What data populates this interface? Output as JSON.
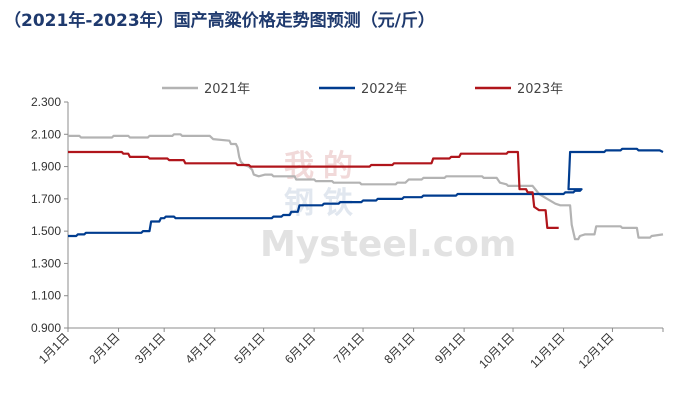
{
  "title": "（2021年-2023年）国产高粱价格走势图预测（元/斤）",
  "watermark": {
    "brand": "Mysteel.com",
    "chars": [
      "我",
      "的",
      "钢",
      "铁"
    ]
  },
  "colors": {
    "s2021": "#b3b3b3",
    "s2022": "#003c8f",
    "s2023": "#b0151b",
    "axis": "#8c8c8c",
    "title": "#1f3a6e"
  },
  "chart_data": {
    "type": "line",
    "ylim": [
      0.9,
      2.3
    ],
    "yticks": [
      "0.900",
      "1.100",
      "1.300",
      "1.500",
      "1.700",
      "1.900",
      "2.100",
      "2.300"
    ],
    "xlim": [
      1,
      366
    ],
    "xtick_days": [
      1,
      32,
      60,
      91,
      121,
      152,
      182,
      213,
      244,
      274,
      305,
      335
    ],
    "xticks": [
      "1月1日",
      "2月1日",
      "3月1日",
      "4月1日",
      "5月1日",
      "6月1日",
      "7月1日",
      "8月1日",
      "9月1日",
      "10月1日",
      "11月1日",
      "12月1日"
    ],
    "x_unit": "day of year",
    "legend": [
      "2021年",
      "2022年",
      "2023年"
    ],
    "legend_position": "top",
    "series": [
      {
        "name": "2021年",
        "color": "#b3b3b3",
        "points": [
          [
            1,
            2.09
          ],
          [
            8,
            2.09
          ],
          [
            9,
            2.08
          ],
          [
            28,
            2.08
          ],
          [
            29,
            2.09
          ],
          [
            38,
            2.09
          ],
          [
            39,
            2.08
          ],
          [
            50,
            2.08
          ],
          [
            51,
            2.09
          ],
          [
            65,
            2.09
          ],
          [
            66,
            2.1
          ],
          [
            70,
            2.1
          ],
          [
            71,
            2.09
          ],
          [
            88,
            2.09
          ],
          [
            90,
            2.07
          ],
          [
            100,
            2.06
          ],
          [
            101,
            2.04
          ],
          [
            104,
            2.04
          ],
          [
            105,
            2.02
          ],
          [
            106,
            1.96
          ],
          [
            107,
            1.93
          ],
          [
            109,
            1.91
          ],
          [
            112,
            1.9
          ],
          [
            114,
            1.88
          ],
          [
            115,
            1.85
          ],
          [
            118,
            1.84
          ],
          [
            122,
            1.85
          ],
          [
            126,
            1.85
          ],
          [
            127,
            1.84
          ],
          [
            140,
            1.84
          ],
          [
            141,
            1.82
          ],
          [
            152,
            1.82
          ],
          [
            153,
            1.81
          ],
          [
            163,
            1.81
          ],
          [
            164,
            1.8
          ],
          [
            180,
            1.8
          ],
          [
            181,
            1.79
          ],
          [
            202,
            1.79
          ],
          [
            203,
            1.8
          ],
          [
            208,
            1.8
          ],
          [
            210,
            1.82
          ],
          [
            218,
            1.82
          ],
          [
            219,
            1.83
          ],
          [
            232,
            1.83
          ],
          [
            233,
            1.84
          ],
          [
            255,
            1.84
          ],
          [
            256,
            1.83
          ],
          [
            264,
            1.83
          ],
          [
            266,
            1.8
          ],
          [
            270,
            1.79
          ],
          [
            271,
            1.78
          ],
          [
            286,
            1.78
          ],
          [
            290,
            1.73
          ],
          [
            295,
            1.7
          ],
          [
            300,
            1.67
          ],
          [
            303,
            1.66
          ],
          [
            309,
            1.66
          ],
          [
            310,
            1.54
          ],
          [
            312,
            1.45
          ],
          [
            314,
            1.45
          ],
          [
            315,
            1.47
          ],
          [
            318,
            1.48
          ],
          [
            324,
            1.48
          ],
          [
            325,
            1.53
          ],
          [
            340,
            1.53
          ],
          [
            341,
            1.52
          ],
          [
            350,
            1.52
          ],
          [
            351,
            1.46
          ],
          [
            358,
            1.46
          ],
          [
            359,
            1.47
          ],
          [
            366,
            1.48
          ]
        ]
      },
      {
        "name": "2022年",
        "color": "#003c8f",
        "points": [
          [
            1,
            1.47
          ],
          [
            6,
            1.47
          ],
          [
            7,
            1.48
          ],
          [
            11,
            1.48
          ],
          [
            12,
            1.49
          ],
          [
            46,
            1.49
          ],
          [
            47,
            1.5
          ],
          [
            51,
            1.5
          ],
          [
            52,
            1.56
          ],
          [
            57,
            1.56
          ],
          [
            58,
            1.58
          ],
          [
            60,
            1.58
          ],
          [
            61,
            1.59
          ],
          [
            66,
            1.59
          ],
          [
            67,
            1.58
          ],
          [
            126,
            1.58
          ],
          [
            127,
            1.59
          ],
          [
            132,
            1.59
          ],
          [
            133,
            1.6
          ],
          [
            137,
            1.6
          ],
          [
            138,
            1.62
          ],
          [
            142,
            1.62
          ],
          [
            143,
            1.66
          ],
          [
            157,
            1.66
          ],
          [
            158,
            1.67
          ],
          [
            167,
            1.67
          ],
          [
            168,
            1.68
          ],
          [
            181,
            1.68
          ],
          [
            182,
            1.69
          ],
          [
            190,
            1.69
          ],
          [
            191,
            1.7
          ],
          [
            206,
            1.7
          ],
          [
            207,
            1.71
          ],
          [
            218,
            1.71
          ],
          [
            219,
            1.72
          ],
          [
            239,
            1.72
          ],
          [
            240,
            1.73
          ],
          [
            305,
            1.73
          ],
          [
            306,
            1.74
          ],
          [
            311,
            1.74
          ],
          [
            312,
            1.75
          ],
          [
            315,
            1.75
          ],
          [
            316,
            1.76
          ],
          [
            308,
            1.76
          ],
          [
            309,
            1.99
          ],
          [
            330,
            1.99
          ],
          [
            331,
            2.0
          ],
          [
            340,
            2.0
          ],
          [
            341,
            2.01
          ],
          [
            350,
            2.01
          ],
          [
            351,
            2.0
          ],
          [
            364,
            2.0
          ],
          [
            366,
            1.99
          ]
        ]
      },
      {
        "name": "2023年",
        "color": "#b0151b",
        "points": [
          [
            1,
            1.99
          ],
          [
            34,
            1.99
          ],
          [
            35,
            1.98
          ],
          [
            38,
            1.98
          ],
          [
            39,
            1.96
          ],
          [
            50,
            1.96
          ],
          [
            51,
            1.95
          ],
          [
            62,
            1.95
          ],
          [
            63,
            1.94
          ],
          [
            72,
            1.94
          ],
          [
            73,
            1.92
          ],
          [
            104,
            1.92
          ],
          [
            105,
            1.91
          ],
          [
            112,
            1.91
          ],
          [
            113,
            1.9
          ],
          [
            186,
            1.9
          ],
          [
            187,
            1.91
          ],
          [
            200,
            1.91
          ],
          [
            201,
            1.92
          ],
          [
            224,
            1.92
          ],
          [
            225,
            1.95
          ],
          [
            235,
            1.95
          ],
          [
            236,
            1.96
          ],
          [
            241,
            1.96
          ],
          [
            242,
            1.98
          ],
          [
            270,
            1.98
          ],
          [
            271,
            1.99
          ],
          [
            277,
            1.99
          ],
          [
            278,
            1.76
          ],
          [
            282,
            1.76
          ],
          [
            283,
            1.74
          ],
          [
            286,
            1.74
          ],
          [
            287,
            1.65
          ],
          [
            290,
            1.63
          ],
          [
            294,
            1.63
          ],
          [
            295,
            1.52
          ],
          [
            302,
            1.52
          ]
        ]
      }
    ]
  }
}
